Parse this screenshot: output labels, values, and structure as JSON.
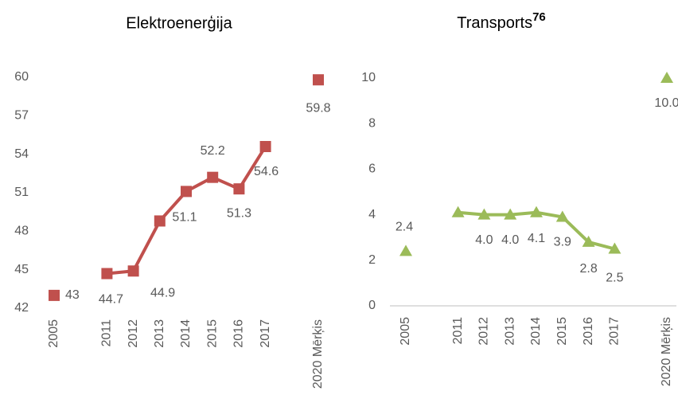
{
  "chart_data": [
    {
      "type": "line",
      "title": "Elektroenerģija",
      "categories": [
        "2005",
        null,
        "2011",
        "2012",
        "2013",
        "2014",
        "2015",
        "2016",
        "2017",
        null,
        "2020 Mērķis"
      ],
      "series": [
        {
          "color": "#c0504d",
          "marker": "square",
          "values": [
            43,
            null,
            44.7,
            44.9,
            48.8,
            51.1,
            52.2,
            51.3,
            54.6,
            null,
            59.8
          ],
          "value_labels": [
            "43",
            null,
            "44.7",
            "44.9",
            null,
            "51.1",
            "52.2",
            "51.3",
            "54.6",
            null,
            "59.8"
          ]
        }
      ],
      "ylim": [
        42,
        60
      ],
      "yticks": [
        42,
        45,
        48,
        51,
        54,
        57,
        60
      ],
      "grid": false,
      "x_axis_line": false
    },
    {
      "type": "line",
      "title": "Transports",
      "title_superscript": "76",
      "categories": [
        "2005",
        null,
        "2011",
        "2012",
        "2013",
        "2014",
        "2015",
        "2016",
        "2017",
        null,
        "2020 Mērķis"
      ],
      "series": [
        {
          "color": "#9bbb59",
          "marker": "triangle",
          "values": [
            2.4,
            null,
            4.1,
            4.0,
            4.0,
            4.1,
            3.9,
            2.8,
            2.5,
            null,
            10.0
          ],
          "value_labels": [
            "2.4",
            null,
            null,
            "4.0",
            "4.0",
            "4.1",
            "3.9",
            "2.8",
            "2.5",
            null,
            "10.0"
          ]
        }
      ],
      "ylim": [
        0,
        10
      ],
      "yticks": [
        0,
        2,
        4,
        6,
        8,
        10
      ],
      "grid": false,
      "x_axis_line": true
    }
  ]
}
